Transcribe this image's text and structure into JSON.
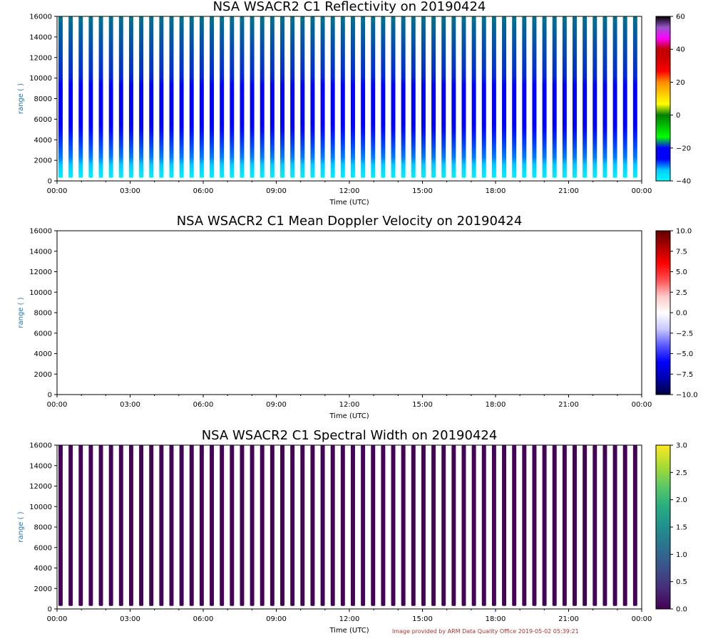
{
  "figure": {
    "credit": "Image provided by ARM Data Quality Office 2019-05-02 05:39:21"
  },
  "chart_data": [
    {
      "type": "heatmap",
      "title": "NSA WSACR2 C1 Reflectivity on 20190424",
      "xlabel": "Time (UTC)",
      "ylabel": "range (  )",
      "xlim": [
        "00:00",
        "24:00"
      ],
      "ylim": [
        0,
        16000
      ],
      "x_tick_labels": [
        "00:00",
        "03:00",
        "06:00",
        "09:00",
        "12:00",
        "15:00",
        "18:00",
        "21:00",
        "00:00"
      ],
      "y_tick_labels": [
        "0",
        "2000",
        "4000",
        "6000",
        "8000",
        "10000",
        "12000",
        "14000",
        "16000"
      ],
      "colorbar": {
        "min": -40,
        "max": 60,
        "tick_labels": [
          "−40",
          "−20",
          "0",
          "20",
          "40",
          "60"
        ],
        "tick_values": [
          -40,
          -20,
          0,
          20,
          40,
          60
        ],
        "colors": [
          "#00ffff",
          "#00c8ff",
          "#0000ff",
          "#0000ff",
          "#00ff00",
          "#00c000",
          "#008000",
          "#ffff00",
          "#ffc800",
          "#ff8c00",
          "#ff0000",
          "#d40000",
          "#c00000",
          "#ff00ff",
          "#9955c9",
          "#000000"
        ]
      },
      "data_summary": {
        "scan_count": 58,
        "range_min": 300,
        "profile": [
          {
            "range": 300,
            "value": -38
          },
          {
            "range": 1000,
            "value": -36
          },
          {
            "range": 2200,
            "value": -31
          },
          {
            "range": 3500,
            "value": -29
          },
          {
            "range": 5000,
            "value": -27
          },
          {
            "range": 6500,
            "value": -25
          },
          {
            "range": 8000,
            "value": -22
          },
          {
            "range": 10000,
            "value": -19
          },
          {
            "range": 16000,
            "value": -17
          }
        ]
      }
    },
    {
      "type": "heatmap",
      "title": "NSA WSACR2 C1 Mean Doppler Velocity on 20190424",
      "xlabel": "Time (UTC)",
      "ylabel": "range (  )",
      "xlim": [
        "00:00",
        "24:00"
      ],
      "ylim": [
        0,
        16000
      ],
      "x_tick_labels": [
        "00:00",
        "03:00",
        "06:00",
        "09:00",
        "12:00",
        "15:00",
        "18:00",
        "21:00",
        "00:00"
      ],
      "y_tick_labels": [
        "0",
        "2000",
        "4000",
        "6000",
        "8000",
        "10000",
        "12000",
        "14000",
        "16000"
      ],
      "colorbar": {
        "min": -10,
        "max": 10,
        "tick_labels": [
          "−10.0",
          "−7.5",
          "−5.0",
          "−2.5",
          "0.0",
          "2.5",
          "5.0",
          "7.5",
          "10.0"
        ],
        "tick_values": [
          -10,
          -7.5,
          -5,
          -2.5,
          0,
          2.5,
          5,
          7.5,
          10
        ],
        "colors": [
          "#000040",
          "#0000b0",
          "#0000ff",
          "#5a5aff",
          "#c8c8ff",
          "#ffffff",
          "#ffc8c8",
          "#ff5050",
          "#ff0000",
          "#b00000",
          "#600000"
        ]
      },
      "data_summary": {
        "scan_count": 58,
        "range_min": 300,
        "profile": [
          {
            "range": 300,
            "value": 0
          },
          {
            "range": 16000,
            "value": 0
          }
        ]
      }
    },
    {
      "type": "heatmap",
      "title": "NSA WSACR2 C1 Spectral Width on 20190424",
      "xlabel": "Time (UTC)",
      "ylabel": "range (  )",
      "xlim": [
        "00:00",
        "24:00"
      ],
      "ylim": [
        0,
        16000
      ],
      "x_tick_labels": [
        "00:00",
        "03:00",
        "06:00",
        "09:00",
        "12:00",
        "15:00",
        "18:00",
        "21:00",
        "00:00"
      ],
      "y_tick_labels": [
        "0",
        "2000",
        "4000",
        "6000",
        "8000",
        "10000",
        "12000",
        "14000",
        "16000"
      ],
      "colorbar": {
        "min": 0,
        "max": 3,
        "tick_labels": [
          "0.0",
          "0.5",
          "1.0",
          "1.5",
          "2.0",
          "2.5",
          "3.0"
        ],
        "tick_values": [
          0,
          0.5,
          1,
          1.5,
          2,
          2.5,
          3
        ],
        "colors": [
          "#440154",
          "#472c7a",
          "#3b518b",
          "#2c718e",
          "#21908d",
          "#27ad81",
          "#5cc863",
          "#aadc32",
          "#fde725"
        ]
      },
      "data_summary": {
        "scan_count": 58,
        "range_min": 300,
        "profile": [
          {
            "range": 300,
            "value": 0.02
          },
          {
            "range": 16000,
            "value": 0.02
          }
        ]
      }
    }
  ]
}
